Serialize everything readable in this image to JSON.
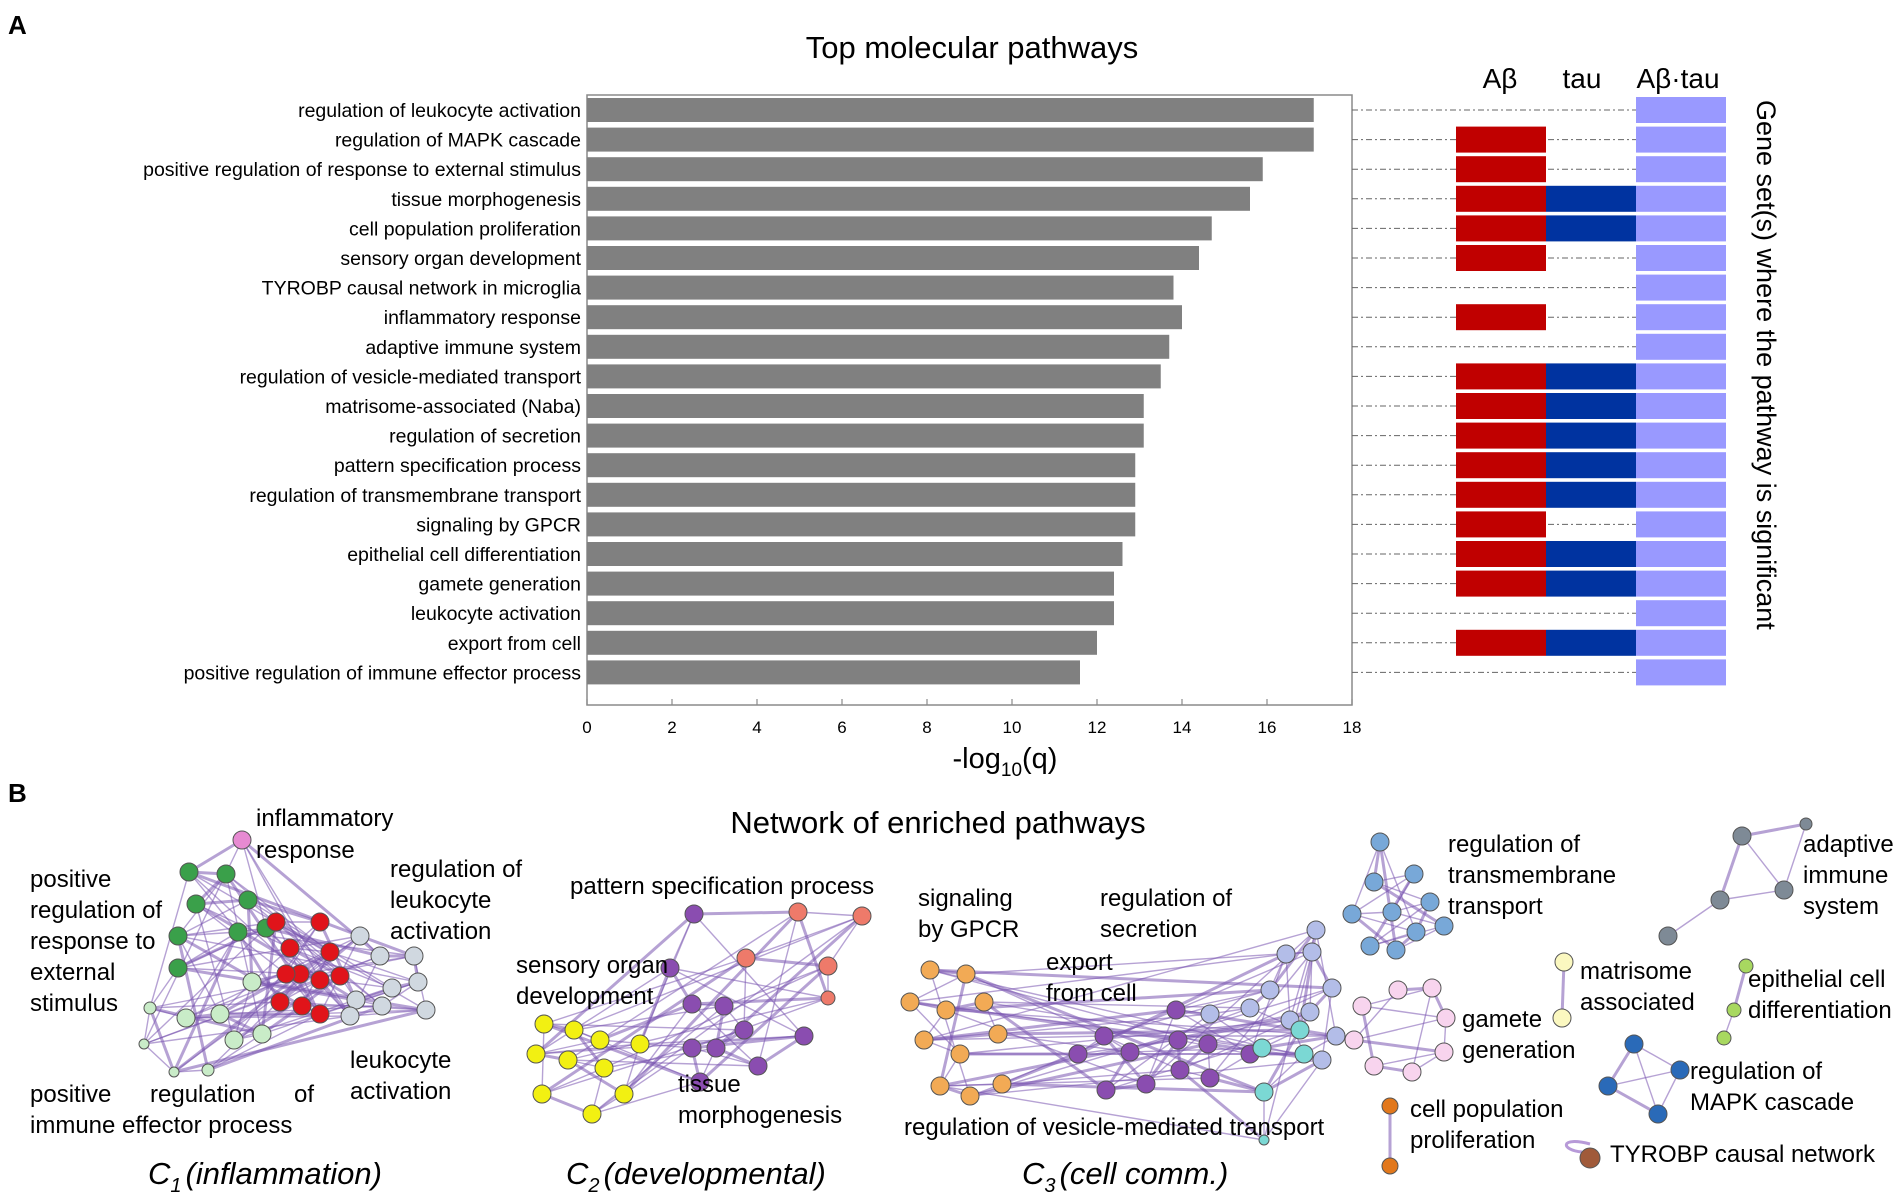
{
  "panel_a_label": "A",
  "panel_b_label": "B",
  "chart_data": [
    {
      "type": "bar",
      "orientation": "horizontal",
      "title": "Top molecular pathways",
      "xlabel_base": "-log",
      "xlabel_sub": "10",
      "xlabel_tail": "(q)",
      "xlim": [
        0,
        18
      ],
      "xticks": [
        0,
        2,
        4,
        6,
        8,
        10,
        12,
        14,
        16,
        18
      ],
      "bar_color": "#808080",
      "categories": [
        "regulation of leukocyte activation",
        "regulation of MAPK cascade",
        "positive regulation of response to external stimulus",
        "tissue morphogenesis",
        "cell population proliferation",
        "sensory organ development",
        "TYROBP causal network in microglia",
        "inflammatory response",
        "adaptive immune system",
        "regulation of vesicle-mediated transport",
        "matrisome-associated (Naba)",
        "regulation of secretion",
        "pattern specification process",
        "regulation of transmembrane transport",
        "signaling by GPCR",
        "epithelial cell differentiation",
        "gamete generation",
        "leukocyte activation",
        "export from cell",
        "positive regulation of immune effector process"
      ],
      "values": [
        17.1,
        17.1,
        15.9,
        15.6,
        14.7,
        14.4,
        13.8,
        14.0,
        13.7,
        13.5,
        13.1,
        13.1,
        12.9,
        12.9,
        12.9,
        12.6,
        12.4,
        12.4,
        12.0,
        11.6
      ]
    },
    {
      "type": "heatmap",
      "columns": [
        "Aβ",
        "tau",
        "Aβ·tau"
      ],
      "colors": [
        "#c00000",
        "#0033a0",
        "#9999ff"
      ],
      "side_label": "Gene set(s) where the pathway is significant",
      "membership": [
        [
          0,
          0,
          1
        ],
        [
          1,
          0,
          1
        ],
        [
          1,
          0,
          1
        ],
        [
          1,
          1,
          1
        ],
        [
          1,
          1,
          1
        ],
        [
          1,
          0,
          1
        ],
        [
          0,
          0,
          1
        ],
        [
          1,
          0,
          1
        ],
        [
          0,
          0,
          1
        ],
        [
          1,
          1,
          1
        ],
        [
          1,
          1,
          1
        ],
        [
          1,
          1,
          1
        ],
        [
          1,
          1,
          1
        ],
        [
          1,
          1,
          1
        ],
        [
          1,
          0,
          1
        ],
        [
          1,
          1,
          1
        ],
        [
          1,
          1,
          1
        ],
        [
          0,
          0,
          1
        ],
        [
          1,
          1,
          1
        ],
        [
          0,
          0,
          1
        ]
      ]
    }
  ],
  "network": {
    "title": "Network of enriched pathways",
    "clusters": [
      {
        "name": "C",
        "sub": "1",
        "desc": "(inflammation)"
      },
      {
        "name": "C",
        "sub": "2",
        "desc": "(developmental)"
      },
      {
        "name": "C",
        "sub": "3",
        "desc": "(cell comm.)"
      }
    ],
    "labels": [
      "inflammatory",
      "response",
      "positive",
      "regulation of",
      "response to",
      "external",
      "stimulus",
      "regulation of",
      "leukocyte",
      "activation",
      "leukocyte",
      "activation",
      "positive",
      "regulation",
      "of",
      "immune effector process",
      "pattern specification process",
      "sensory organ",
      "development",
      "tissue",
      "morphogenesis",
      "signaling",
      "by GPCR",
      "regulation of",
      "secretion",
      "export",
      "from cell",
      "regulation of vesicle-mediated transport",
      "regulation of",
      "transmembrane",
      "transport",
      "adaptive",
      "immune",
      "system",
      "matrisome",
      "associated",
      "epithelial cell",
      "differentiation",
      "gamete",
      "generation",
      "regulation of",
      "MAPK cascade",
      "cell population",
      "proliferation",
      "TYROBP causal network"
    ]
  }
}
